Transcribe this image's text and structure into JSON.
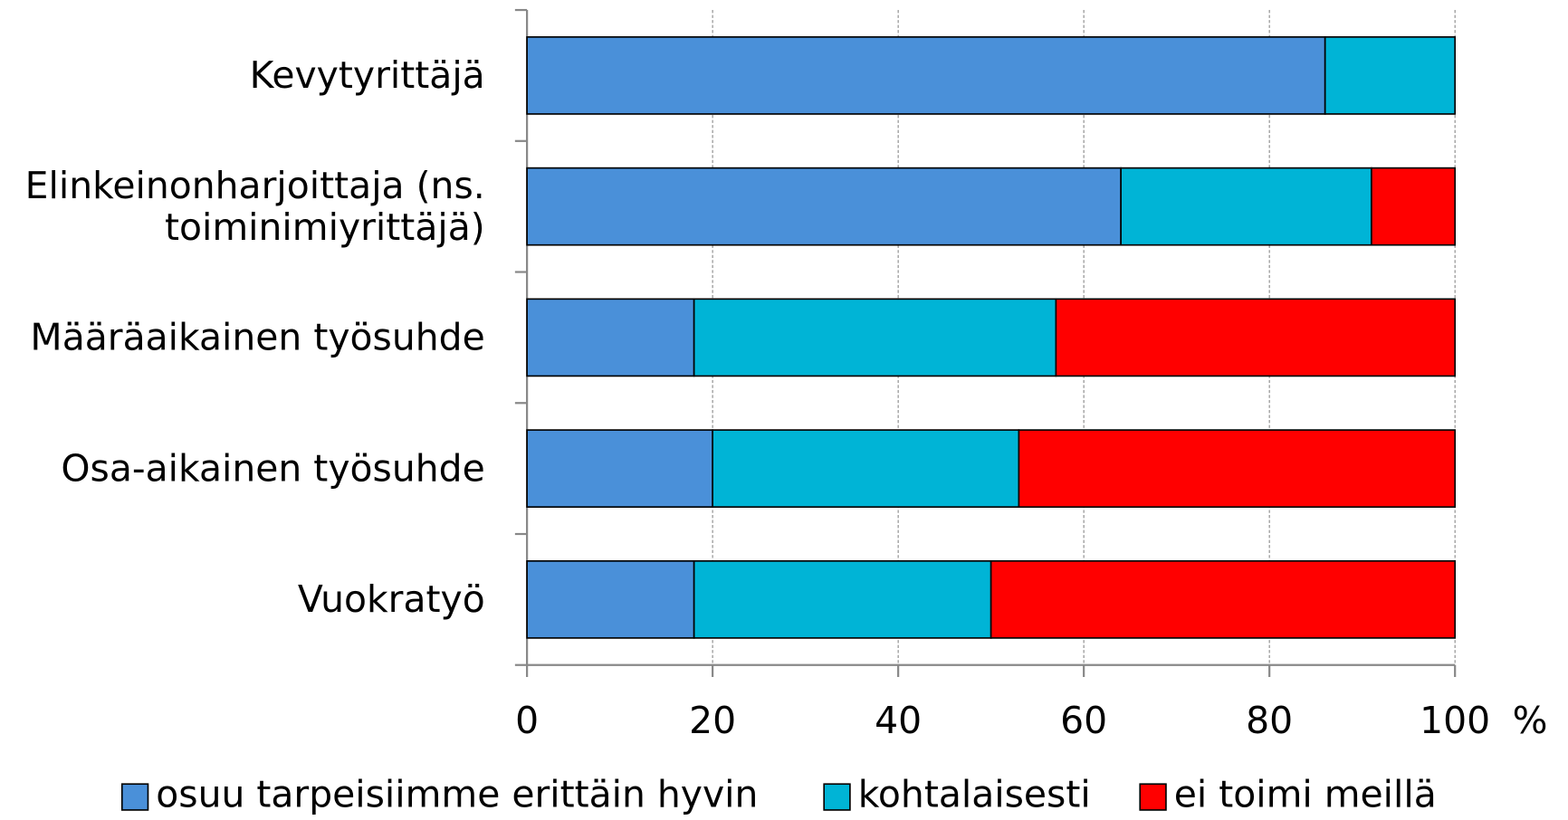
{
  "chart_data": {
    "type": "stacked-bar-horizontal",
    "categories": [
      "Kevytyrittäjä",
      "Elinkeinonharjoittaja (ns. toiminimiyrittäjä)",
      "Määräaikainen työsuhde",
      "Osa-aikainen työsuhde",
      "Vuokratyö"
    ],
    "series": [
      {
        "name": "osuu tarpeisiimme erittäin hyvin",
        "color": "#4a90d9",
        "values": [
          86,
          64,
          18,
          20,
          18
        ]
      },
      {
        "name": "kohtalaisesti",
        "color": "#00b4d6",
        "values": [
          14,
          27,
          39,
          33,
          32
        ]
      },
      {
        "name": "ei toimi meillä",
        "color": "#ff0000",
        "values": [
          0,
          9,
          43,
          47,
          50
        ]
      }
    ],
    "xlabel": "%",
    "xlim": [
      0,
      100
    ],
    "xticks": [
      0,
      20,
      40,
      60,
      80,
      100
    ],
    "grid": true,
    "legend": "bottom"
  }
}
